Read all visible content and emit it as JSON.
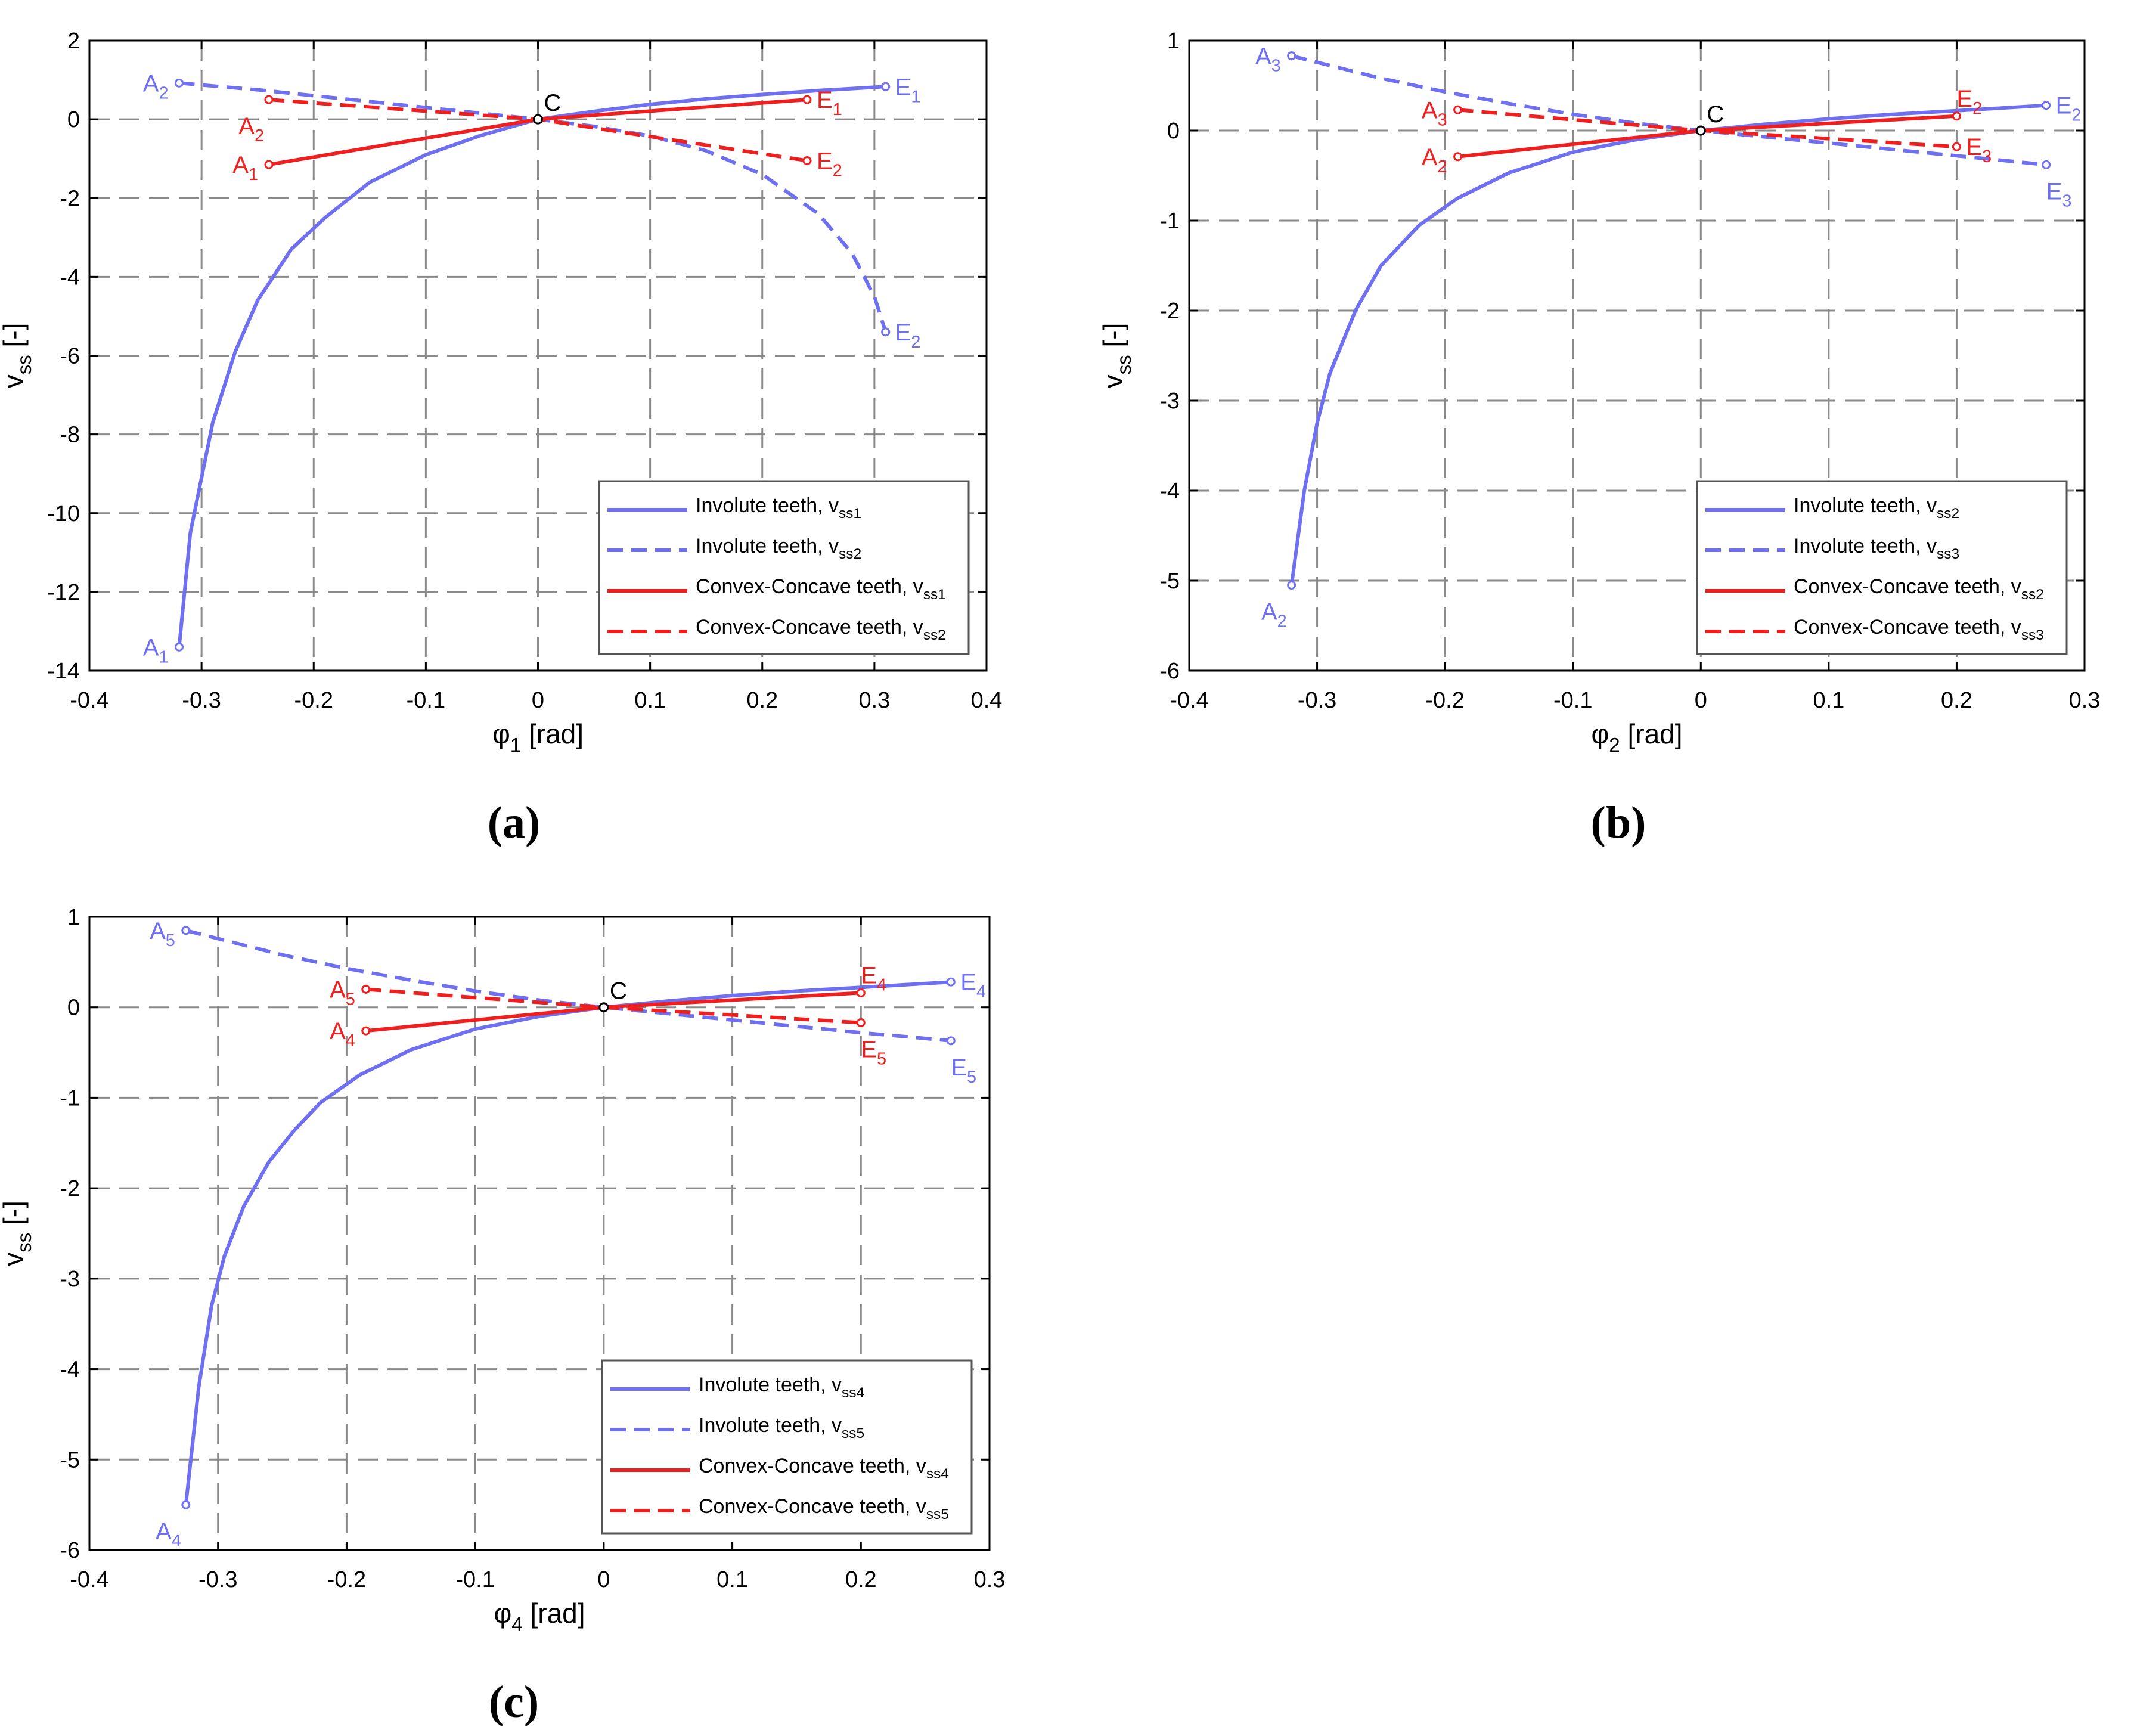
{
  "colors": {
    "involute": "#6f6ff2",
    "convex": "#f01f1f",
    "grid": "#8a8a8a",
    "axis": "#000000"
  },
  "chart_data": [
    {
      "id": "a",
      "type": "line",
      "caption": "(a)",
      "xlabel_var": "φ",
      "xlabel_sub": "1",
      "xlabel_unit": " [rad]",
      "ylabel_var": "v",
      "ylabel_sub": "ss",
      "ylabel_unit": " [-]",
      "xlim": [
        -0.4,
        0.4
      ],
      "ylim": [
        -14,
        2
      ],
      "xticks": [
        -0.4,
        -0.3,
        -0.2,
        -0.1,
        0,
        0.1,
        0.2,
        0.3,
        0.4
      ],
      "xtick_labels": [
        "-0.4",
        "-0.3",
        "-0.2",
        "-0.1",
        "0",
        "0.1",
        "0.2",
        "0.3",
        "0.4"
      ],
      "yticks": [
        -14,
        -12,
        -10,
        -8,
        -6,
        -4,
        -2,
        0,
        2
      ],
      "ytick_labels": [
        "-14",
        "-12",
        "-10",
        "-8",
        "-6",
        "-4",
        "-2",
        "0",
        "2"
      ],
      "series": [
        {
          "name": "Involute teeth, v",
          "sub": "ss1",
          "color": "#6f6ff2",
          "dash": false,
          "x": [
            -0.32,
            -0.31,
            -0.29,
            -0.27,
            -0.25,
            -0.22,
            -0.19,
            -0.15,
            -0.1,
            -0.05,
            0,
            0.05,
            0.1,
            0.15,
            0.2,
            0.25,
            0.31
          ],
          "y": [
            -13.4,
            -10.5,
            -7.7,
            -5.9,
            -4.6,
            -3.3,
            -2.5,
            -1.6,
            -0.9,
            -0.4,
            0,
            0.2,
            0.38,
            0.52,
            0.63,
            0.73,
            0.83
          ]
        },
        {
          "name": "Involute teeth, v",
          "sub": "ss2",
          "color": "#6f6ff2",
          "dash": true,
          "x": [
            -0.32,
            -0.25,
            -0.2,
            -0.15,
            -0.1,
            -0.05,
            0,
            0.05,
            0.1,
            0.15,
            0.2,
            0.25,
            0.28,
            0.3,
            0.31
          ],
          "y": [
            0.92,
            0.75,
            0.6,
            0.45,
            0.3,
            0.15,
            0,
            -0.18,
            -0.42,
            -0.8,
            -1.4,
            -2.4,
            -3.4,
            -4.5,
            -5.4
          ]
        },
        {
          "name": "Convex-Concave teeth, v",
          "sub": "ss1",
          "color": "#f01f1f",
          "dash": false,
          "x": [
            -0.24,
            0,
            0.24
          ],
          "y": [
            -1.15,
            0,
            0.5
          ]
        },
        {
          "name": "Convex-Concave teeth, v",
          "sub": "ss2",
          "color": "#f01f1f",
          "dash": true,
          "x": [
            -0.24,
            0,
            0.24
          ],
          "y": [
            0.5,
            0,
            -1.05
          ]
        }
      ],
      "annotations": [
        {
          "base": "A",
          "sub": "2",
          "x": -0.32,
          "y": 0.92,
          "color": "#6f6ff2",
          "pos": "left"
        },
        {
          "base": "A",
          "sub": "2",
          "x": -0.24,
          "y": 0.5,
          "color": "#f01f1f",
          "pos": "below-left"
        },
        {
          "base": "A",
          "sub": "1",
          "x": -0.24,
          "y": -1.15,
          "color": "#f01f1f",
          "pos": "left"
        },
        {
          "base": "A",
          "sub": "1",
          "x": -0.32,
          "y": -13.4,
          "color": "#6f6ff2",
          "pos": "left"
        },
        {
          "base": "C",
          "sub": "",
          "x": 0,
          "y": 0,
          "color": "#000000",
          "pos": "above-right"
        },
        {
          "base": "E",
          "sub": "1",
          "x": 0.31,
          "y": 0.83,
          "color": "#6f6ff2",
          "pos": "right"
        },
        {
          "base": "E",
          "sub": "1",
          "x": 0.24,
          "y": 0.5,
          "color": "#f01f1f",
          "pos": "right"
        },
        {
          "base": "E",
          "sub": "2",
          "x": 0.24,
          "y": -1.05,
          "color": "#f01f1f",
          "pos": "right"
        },
        {
          "base": "E",
          "sub": "2",
          "x": 0.31,
          "y": -5.4,
          "color": "#6f6ff2",
          "pos": "right"
        }
      ],
      "legend": "bottom-right"
    },
    {
      "id": "b",
      "type": "line",
      "caption": "(b)",
      "xlabel_var": "φ",
      "xlabel_sub": "2",
      "xlabel_unit": " [rad]",
      "ylabel_var": "v",
      "ylabel_sub": "ss",
      "ylabel_unit": " [-]",
      "xlim": [
        -0.4,
        0.3
      ],
      "ylim": [
        -6,
        1
      ],
      "xticks": [
        -0.4,
        -0.3,
        -0.2,
        -0.1,
        0,
        0.1,
        0.2,
        0.3
      ],
      "xtick_labels": [
        "-0.4",
        "-0.3",
        "-0.2",
        "-0.1",
        "0",
        "0.1",
        "0.2",
        "0.3"
      ],
      "yticks": [
        -6,
        -5,
        -4,
        -3,
        -2,
        -1,
        0,
        1
      ],
      "ytick_labels": [
        "-6",
        "-5",
        "-4",
        "-3",
        "-2",
        "-1",
        "0",
        "1"
      ],
      "series": [
        {
          "name": "Involute teeth, v",
          "sub": "ss2",
          "color": "#6f6ff2",
          "dash": false,
          "x": [
            -0.32,
            -0.31,
            -0.3,
            -0.29,
            -0.27,
            -0.25,
            -0.22,
            -0.19,
            -0.15,
            -0.1,
            -0.05,
            0,
            0.05,
            0.1,
            0.15,
            0.2,
            0.27
          ],
          "y": [
            -5.05,
            -4.0,
            -3.25,
            -2.7,
            -2.0,
            -1.5,
            -1.05,
            -0.75,
            -0.47,
            -0.24,
            -0.1,
            0,
            0.07,
            0.13,
            0.18,
            0.22,
            0.28
          ]
        },
        {
          "name": "Involute teeth, v",
          "sub": "ss3",
          "color": "#6f6ff2",
          "dash": true,
          "x": [
            -0.32,
            -0.25,
            -0.2,
            -0.15,
            -0.1,
            -0.05,
            0,
            0.05,
            0.1,
            0.15,
            0.2,
            0.27
          ],
          "y": [
            0.83,
            0.58,
            0.43,
            0.3,
            0.18,
            0.08,
            0,
            -0.07,
            -0.14,
            -0.21,
            -0.28,
            -0.38
          ]
        },
        {
          "name": "Convex-Concave teeth, v",
          "sub": "ss2",
          "color": "#f01f1f",
          "dash": false,
          "x": [
            -0.19,
            0,
            0.2
          ],
          "y": [
            -0.29,
            0,
            0.16
          ]
        },
        {
          "name": "Convex-Concave teeth, v",
          "sub": "ss3",
          "color": "#f01f1f",
          "dash": true,
          "x": [
            -0.19,
            0,
            0.2
          ],
          "y": [
            0.23,
            0,
            -0.18
          ]
        }
      ],
      "annotations": [
        {
          "base": "A",
          "sub": "3",
          "x": -0.32,
          "y": 0.83,
          "color": "#6f6ff2",
          "pos": "left"
        },
        {
          "base": "A",
          "sub": "3",
          "x": -0.19,
          "y": 0.23,
          "color": "#f01f1f",
          "pos": "left"
        },
        {
          "base": "A",
          "sub": "2",
          "x": -0.19,
          "y": -0.29,
          "color": "#f01f1f",
          "pos": "left"
        },
        {
          "base": "A",
          "sub": "2",
          "x": -0.32,
          "y": -5.05,
          "color": "#6f6ff2",
          "pos": "below-left"
        },
        {
          "base": "C",
          "sub": "",
          "x": 0,
          "y": 0,
          "color": "#000000",
          "pos": "above-right"
        },
        {
          "base": "E",
          "sub": "2",
          "x": 0.2,
          "y": 0.16,
          "color": "#f01f1f",
          "pos": "above"
        },
        {
          "base": "E",
          "sub": "2",
          "x": 0.27,
          "y": 0.28,
          "color": "#6f6ff2",
          "pos": "right"
        },
        {
          "base": "E",
          "sub": "3",
          "x": 0.2,
          "y": -0.18,
          "color": "#f01f1f",
          "pos": "right"
        },
        {
          "base": "E",
          "sub": "3",
          "x": 0.27,
          "y": -0.38,
          "color": "#6f6ff2",
          "pos": "below"
        }
      ],
      "legend": "bottom-right"
    },
    {
      "id": "c",
      "type": "line",
      "caption": "(c)",
      "xlabel_var": "φ",
      "xlabel_sub": "4",
      "xlabel_unit": " [rad]",
      "ylabel_var": "v",
      "ylabel_sub": "ss",
      "ylabel_unit": " [-]",
      "xlim": [
        -0.4,
        0.3
      ],
      "ylim": [
        -6,
        1
      ],
      "xticks": [
        -0.4,
        -0.3,
        -0.2,
        -0.1,
        0,
        0.1,
        0.2,
        0.3
      ],
      "xtick_labels": [
        "-0.4",
        "-0.3",
        "-0.2",
        "-0.1",
        "0",
        "0.1",
        "0.2",
        "0.3"
      ],
      "yticks": [
        -6,
        -5,
        -4,
        -3,
        -2,
        -1,
        0,
        1
      ],
      "ytick_labels": [
        "-6",
        "-5",
        "-4",
        "-3",
        "-2",
        "-1",
        "0",
        "1"
      ],
      "series": [
        {
          "name": "Involute teeth, v",
          "sub": "ss4",
          "color": "#6f6ff2",
          "dash": false,
          "x": [
            -0.325,
            -0.315,
            -0.305,
            -0.295,
            -0.28,
            -0.26,
            -0.24,
            -0.22,
            -0.19,
            -0.15,
            -0.1,
            -0.05,
            0,
            0.05,
            0.1,
            0.15,
            0.2,
            0.27
          ],
          "y": [
            -5.5,
            -4.2,
            -3.3,
            -2.75,
            -2.2,
            -1.7,
            -1.35,
            -1.05,
            -0.75,
            -0.47,
            -0.24,
            -0.1,
            0,
            0.07,
            0.13,
            0.18,
            0.22,
            0.28
          ]
        },
        {
          "name": "Involute teeth, v",
          "sub": "ss5",
          "color": "#6f6ff2",
          "dash": true,
          "x": [
            -0.325,
            -0.25,
            -0.2,
            -0.15,
            -0.1,
            -0.05,
            0,
            0.05,
            0.1,
            0.15,
            0.2,
            0.27
          ],
          "y": [
            0.85,
            0.58,
            0.43,
            0.3,
            0.18,
            0.08,
            0,
            -0.07,
            -0.14,
            -0.21,
            -0.28,
            -0.37
          ]
        },
        {
          "name": "Convex-Concave teeth, v",
          "sub": "ss4",
          "color": "#f01f1f",
          "dash": false,
          "x": [
            -0.185,
            0,
            0.2
          ],
          "y": [
            -0.26,
            0,
            0.16
          ]
        },
        {
          "name": "Convex-Concave teeth, v",
          "sub": "ss5",
          "color": "#f01f1f",
          "dash": true,
          "x": [
            -0.185,
            0,
            0.2
          ],
          "y": [
            0.2,
            0,
            -0.17
          ]
        }
      ],
      "annotations": [
        {
          "base": "A",
          "sub": "5",
          "x": -0.325,
          "y": 0.85,
          "color": "#6f6ff2",
          "pos": "left"
        },
        {
          "base": "A",
          "sub": "5",
          "x": -0.185,
          "y": 0.2,
          "color": "#f01f1f",
          "pos": "left"
        },
        {
          "base": "A",
          "sub": "4",
          "x": -0.185,
          "y": -0.26,
          "color": "#f01f1f",
          "pos": "left"
        },
        {
          "base": "A",
          "sub": "4",
          "x": -0.325,
          "y": -5.5,
          "color": "#6f6ff2",
          "pos": "below-left"
        },
        {
          "base": "C",
          "sub": "",
          "x": 0,
          "y": 0,
          "color": "#000000",
          "pos": "above-right"
        },
        {
          "base": "E",
          "sub": "4",
          "x": 0.2,
          "y": 0.16,
          "color": "#f01f1f",
          "pos": "above"
        },
        {
          "base": "E",
          "sub": "4",
          "x": 0.27,
          "y": 0.28,
          "color": "#6f6ff2",
          "pos": "right"
        },
        {
          "base": "E",
          "sub": "5",
          "x": 0.2,
          "y": -0.17,
          "color": "#f01f1f",
          "pos": "below"
        },
        {
          "base": "E",
          "sub": "5",
          "x": 0.27,
          "y": -0.37,
          "color": "#6f6ff2",
          "pos": "below"
        }
      ],
      "legend": "bottom-right"
    }
  ]
}
